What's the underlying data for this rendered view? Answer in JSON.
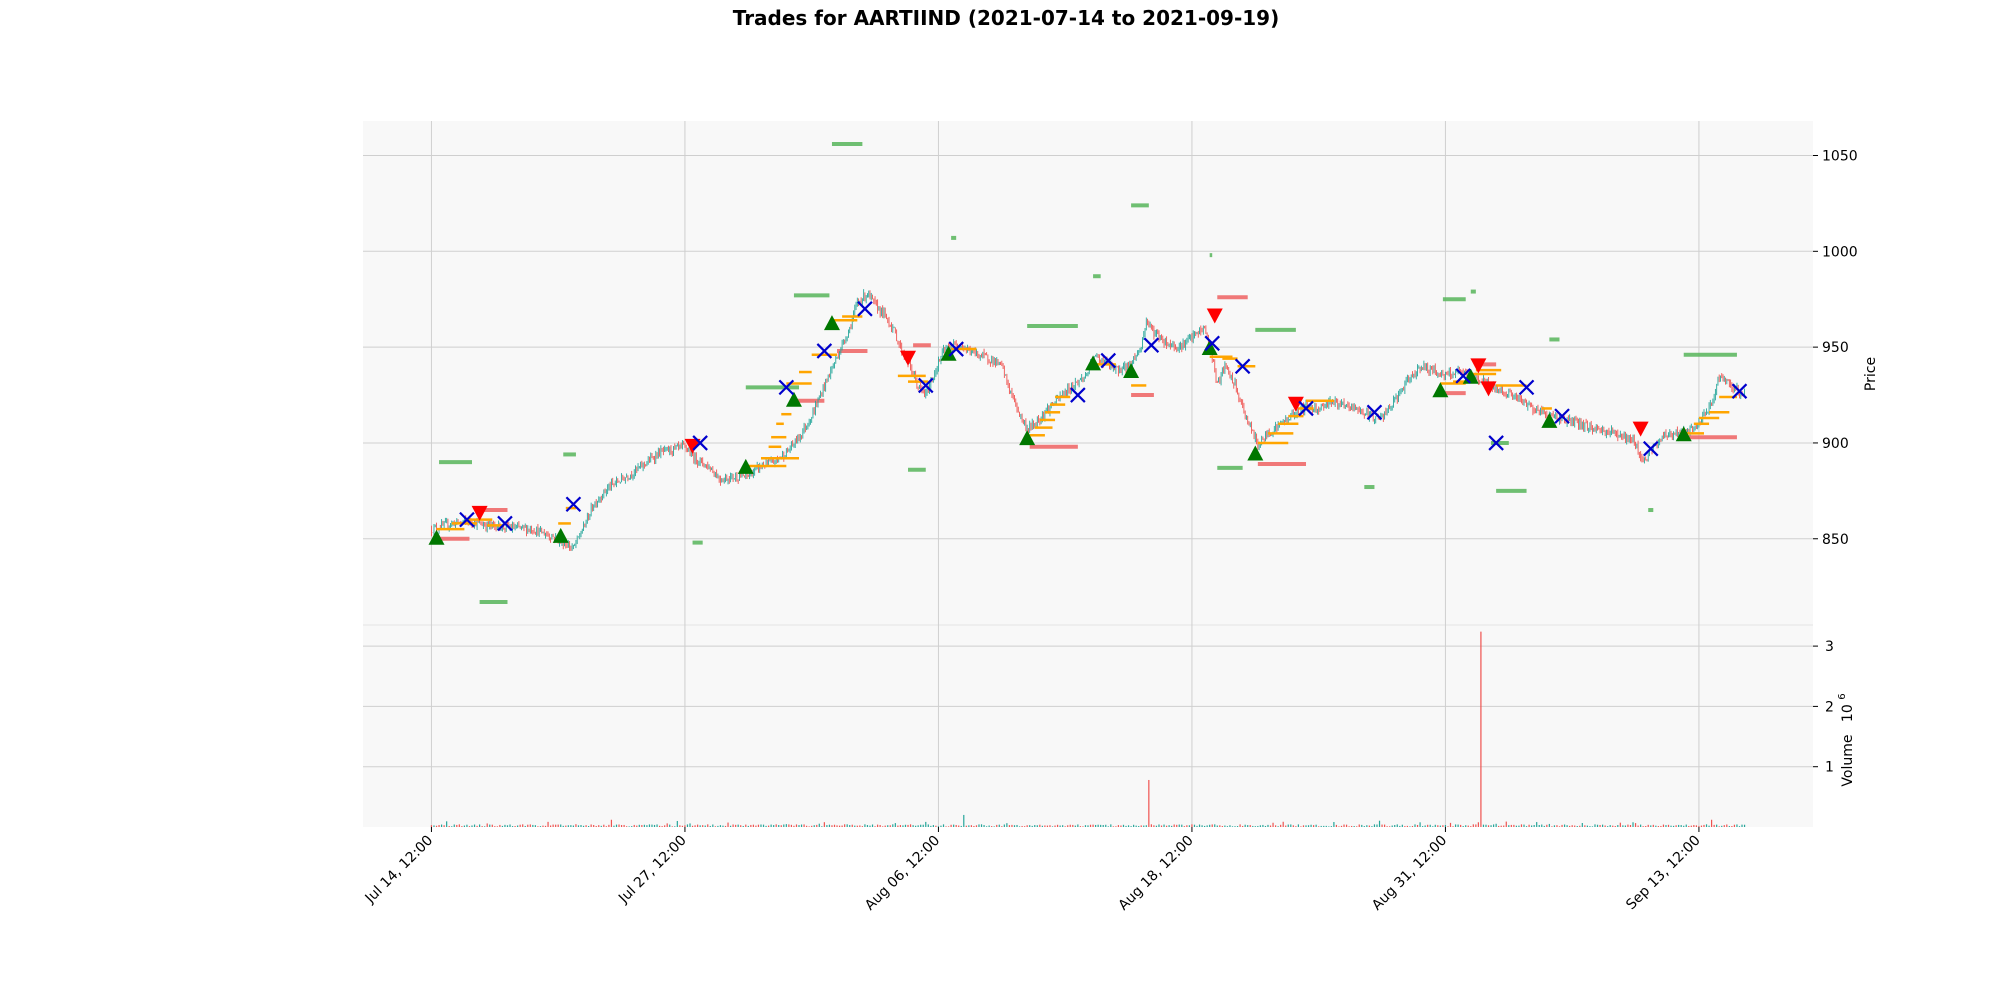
{
  "chart_data": {
    "type": "candlestick",
    "title": "Trades for AARTIIND (2021-07-14 to 2021-09-19)",
    "x_tick_labels": [
      "Jul 14, 12:00",
      "Jul 27, 12:00",
      "Aug 06, 12:00",
      "Aug 18, 12:00",
      "Aug 31, 12:00",
      "Sep 13, 12:00"
    ],
    "x_tick_positions": [
      0,
      100,
      200,
      300,
      400,
      500
    ],
    "x_range": [
      -27,
      545
    ],
    "price_axis": {
      "label": "Price",
      "ticks": [
        850,
        900,
        950,
        1000,
        1050
      ],
      "range": [
        805,
        1068
      ]
    },
    "volume_axis": {
      "label": "Volume",
      "exponent_label": "10",
      "exponent": "6",
      "ticks": [
        1,
        2,
        3
      ],
      "tick_labels": [
        "1",
        "2",
        "3"
      ],
      "range_millions": [
        0,
        3.35
      ]
    },
    "grid": true,
    "colors": {
      "up": "#26a69a",
      "down": "#ef5350",
      "buy_marker": "#007700",
      "sell_marker": "#ff0000",
      "exit_marker": "#0000cc",
      "entry_line": "#ffa500",
      "take_profit_line": "#57b55a",
      "stop_loss_line": "#ef6262",
      "panel_bg": "#f8f8f8"
    },
    "price_path": [
      [
        0,
        855
      ],
      [
        8,
        858
      ],
      [
        15,
        859
      ],
      [
        22,
        857
      ],
      [
        30,
        856
      ],
      [
        40,
        855
      ],
      [
        48,
        851
      ],
      [
        52,
        848
      ],
      [
        56,
        845
      ],
      [
        60,
        856
      ],
      [
        64,
        868
      ],
      [
        70,
        877
      ],
      [
        80,
        885
      ],
      [
        90,
        895
      ],
      [
        100,
        898
      ],
      [
        104,
        892
      ],
      [
        110,
        887
      ],
      [
        114,
        881
      ],
      [
        118,
        882
      ],
      [
        125,
        883
      ],
      [
        130,
        888
      ],
      [
        135,
        890
      ],
      [
        140,
        895
      ],
      [
        145,
        903
      ],
      [
        150,
        914
      ],
      [
        155,
        930
      ],
      [
        160,
        945
      ],
      [
        165,
        960
      ],
      [
        168,
        973
      ],
      [
        172,
        978
      ],
      [
        175,
        972
      ],
      [
        178,
        968
      ],
      [
        182,
        960
      ],
      [
        185,
        950
      ],
      [
        188,
        942
      ],
      [
        190,
        936
      ],
      [
        192,
        929
      ],
      [
        195,
        925
      ],
      [
        198,
        935
      ],
      [
        202,
        948
      ],
      [
        208,
        952
      ],
      [
        212,
        948
      ],
      [
        220,
        944
      ],
      [
        225,
        940
      ],
      [
        228,
        928
      ],
      [
        232,
        915
      ],
      [
        235,
        907
      ],
      [
        238,
        910
      ],
      [
        242,
        916
      ],
      [
        248,
        924
      ],
      [
        253,
        930
      ],
      [
        258,
        935
      ],
      [
        262,
        945
      ],
      [
        266,
        942
      ],
      [
        270,
        938
      ],
      [
        275,
        940
      ],
      [
        280,
        950
      ],
      [
        282,
        964
      ],
      [
        285,
        958
      ],
      [
        290,
        952
      ],
      [
        295,
        950
      ],
      [
        300,
        955
      ],
      [
        305,
        960
      ],
      [
        308,
        945
      ],
      [
        310,
        930
      ],
      [
        313,
        940
      ],
      [
        317,
        930
      ],
      [
        320,
        918
      ],
      [
        323,
        908
      ],
      [
        326,
        899
      ],
      [
        330,
        905
      ],
      [
        335,
        910
      ],
      [
        340,
        915
      ],
      [
        345,
        919
      ],
      [
        350,
        918
      ],
      [
        355,
        922
      ],
      [
        360,
        919
      ],
      [
        365,
        918
      ],
      [
        370,
        914
      ],
      [
        375,
        913
      ],
      [
        380,
        922
      ],
      [
        385,
        932
      ],
      [
        390,
        940
      ],
      [
        395,
        938
      ],
      [
        400,
        935
      ],
      [
        405,
        937
      ],
      [
        410,
        935
      ],
      [
        415,
        932
      ],
      [
        420,
        928
      ],
      [
        425,
        926
      ],
      [
        430,
        922
      ],
      [
        435,
        918
      ],
      [
        440,
        915
      ],
      [
        450,
        911
      ],
      [
        460,
        907
      ],
      [
        468,
        905
      ],
      [
        475,
        900
      ],
      [
        478,
        890
      ],
      [
        482,
        897
      ],
      [
        486,
        904
      ],
      [
        490,
        905
      ],
      [
        495,
        905
      ],
      [
        500,
        910
      ],
      [
        505,
        920
      ],
      [
        508,
        935
      ],
      [
        512,
        930
      ],
      [
        518,
        925
      ]
    ],
    "volume_spikes_millions": [
      [
        71,
        0.12
      ],
      [
        93,
        0.06
      ],
      [
        155,
        0.08
      ],
      [
        210,
        0.2
      ],
      [
        283,
        0.78
      ],
      [
        414,
        3.24
      ],
      [
        424,
        0.09
      ],
      [
        505,
        0.12
      ]
    ],
    "buy_markers": [
      [
        2,
        850
      ],
      [
        51,
        851
      ],
      [
        124,
        887
      ],
      [
        143,
        922
      ],
      [
        158,
        962
      ],
      [
        204,
        946
      ],
      [
        235,
        902
      ],
      [
        261,
        941
      ],
      [
        276,
        937
      ],
      [
        307,
        949
      ],
      [
        325,
        894
      ],
      [
        398,
        927
      ],
      [
        410,
        934
      ],
      [
        441,
        911
      ],
      [
        494,
        904
      ]
    ],
    "sell_markers": [
      [
        19,
        864
      ],
      [
        103,
        899
      ],
      [
        188,
        945
      ],
      [
        309,
        967
      ],
      [
        341,
        921
      ],
      [
        413,
        941
      ],
      [
        417,
        929
      ],
      [
        477,
        908
      ]
    ],
    "exit_markers": [
      [
        14,
        860
      ],
      [
        29,
        858
      ],
      [
        56,
        868
      ],
      [
        106,
        900
      ],
      [
        140,
        929
      ],
      [
        155,
        948
      ],
      [
        171,
        970
      ],
      [
        195,
        930
      ],
      [
        207,
        949
      ],
      [
        255,
        925
      ],
      [
        267,
        943
      ],
      [
        284,
        951
      ],
      [
        308,
        952
      ],
      [
        320,
        940
      ],
      [
        345,
        918
      ],
      [
        372,
        916
      ],
      [
        407,
        935
      ],
      [
        420,
        900
      ],
      [
        432,
        929
      ],
      [
        446,
        914
      ],
      [
        481,
        897
      ],
      [
        516,
        927
      ]
    ],
    "take_profit_lines": [
      [
        3,
        16,
        890
      ],
      [
        19,
        30,
        817
      ],
      [
        52,
        57,
        894
      ],
      [
        103,
        107,
        848
      ],
      [
        124,
        145,
        929
      ],
      [
        143,
        157,
        977
      ],
      [
        158,
        170,
        1056
      ],
      [
        188,
        195,
        886
      ],
      [
        205,
        207,
        1007
      ],
      [
        235,
        255,
        961
      ],
      [
        261,
        264,
        987
      ],
      [
        276,
        283,
        1024
      ],
      [
        307,
        308,
        998
      ],
      [
        325,
        341,
        959
      ],
      [
        310,
        320,
        887
      ],
      [
        368,
        372,
        877
      ],
      [
        399,
        408,
        975
      ],
      [
        410,
        412,
        979
      ],
      [
        418,
        425,
        900
      ],
      [
        420,
        432,
        875
      ],
      [
        441,
        445,
        954
      ],
      [
        480,
        482,
        865
      ],
      [
        494,
        515,
        946
      ]
    ],
    "stop_loss_lines": [
      [
        2,
        15,
        850
      ],
      [
        20,
        30,
        865
      ],
      [
        144,
        155,
        922
      ],
      [
        160,
        172,
        948
      ],
      [
        190,
        197,
        951
      ],
      [
        236,
        255,
        898
      ],
      [
        276,
        285,
        925
      ],
      [
        310,
        322,
        976
      ],
      [
        326,
        345,
        889
      ],
      [
        399,
        408,
        926
      ],
      [
        412,
        420,
        941
      ],
      [
        495,
        515,
        903
      ]
    ],
    "entry_segments": [
      [
        2,
        13,
        855
      ],
      [
        8,
        18,
        858
      ],
      [
        14,
        24,
        860
      ],
      [
        22,
        28,
        857
      ],
      [
        50,
        55,
        858
      ],
      [
        53,
        57,
        866
      ],
      [
        125,
        140,
        888
      ],
      [
        130,
        145,
        892
      ],
      [
        133,
        138,
        898
      ],
      [
        134,
        140,
        903
      ],
      [
        136,
        139,
        910
      ],
      [
        138,
        142,
        915
      ],
      [
        140,
        150,
        931
      ],
      [
        145,
        150,
        937
      ],
      [
        150,
        160,
        946
      ],
      [
        158,
        168,
        964
      ],
      [
        162,
        170,
        966
      ],
      [
        184,
        195,
        935
      ],
      [
        188,
        196,
        932
      ],
      [
        205,
        215,
        949
      ],
      [
        236,
        242,
        904
      ],
      [
        238,
        245,
        908
      ],
      [
        240,
        246,
        912
      ],
      [
        242,
        248,
        916
      ],
      [
        244,
        250,
        920
      ],
      [
        246,
        252,
        924
      ],
      [
        262,
        270,
        941
      ],
      [
        276,
        282,
        930
      ],
      [
        307,
        316,
        945
      ],
      [
        312,
        318,
        944
      ],
      [
        318,
        325,
        940
      ],
      [
        326,
        338,
        900
      ],
      [
        330,
        340,
        905
      ],
      [
        334,
        342,
        910
      ],
      [
        338,
        344,
        914
      ],
      [
        342,
        348,
        918
      ],
      [
        345,
        356,
        922
      ],
      [
        398,
        408,
        931
      ],
      [
        403,
        410,
        932
      ],
      [
        410,
        420,
        936
      ],
      [
        412,
        422,
        938
      ],
      [
        420,
        432,
        930
      ],
      [
        438,
        442,
        918
      ],
      [
        495,
        502,
        905
      ],
      [
        498,
        504,
        910
      ],
      [
        500,
        508,
        913
      ],
      [
        504,
        512,
        916
      ],
      [
        508,
        515,
        924
      ]
    ]
  }
}
